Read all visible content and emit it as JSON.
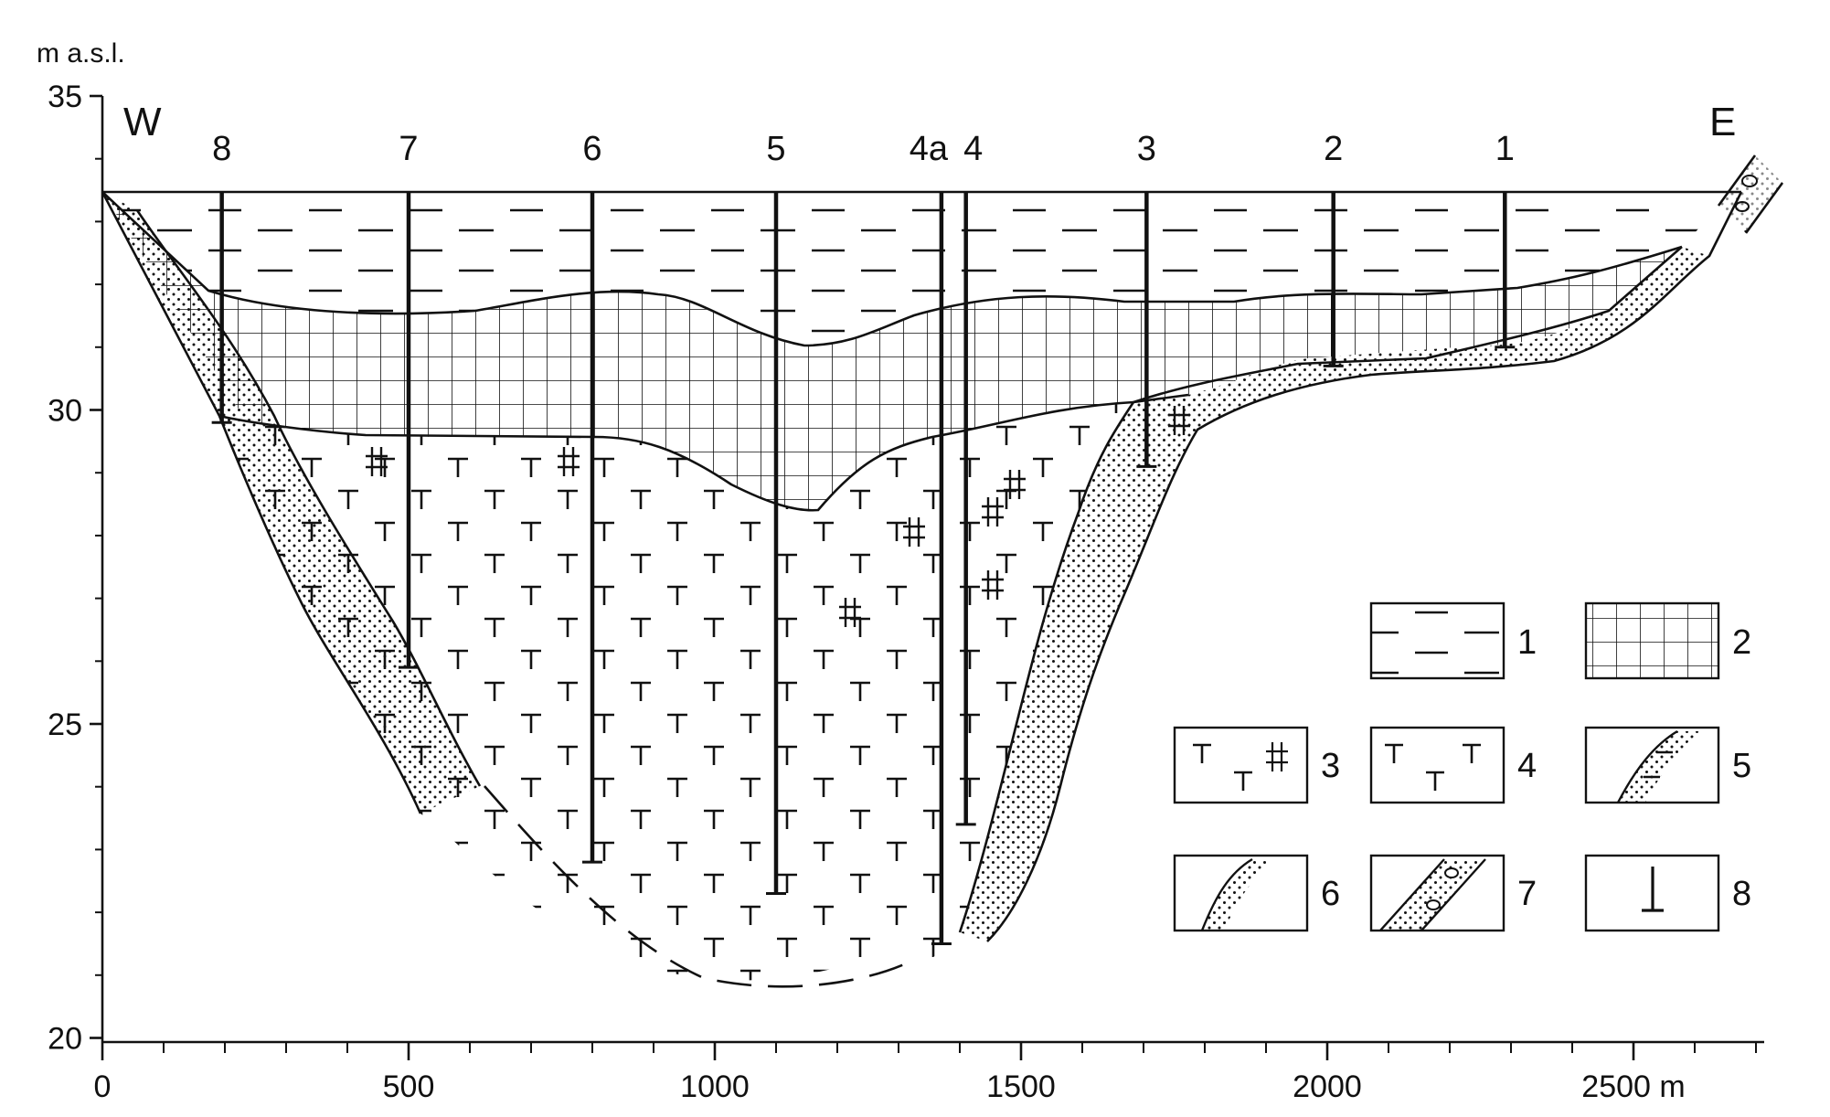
{
  "y_axis": {
    "unit_label": "m a.s.l.",
    "ticks": [
      {
        "value": 35,
        "label": "35"
      },
      {
        "value": 30,
        "label": "30"
      },
      {
        "value": 25,
        "label": "25"
      },
      {
        "value": 20,
        "label": "20"
      }
    ]
  },
  "x_axis": {
    "ticks": [
      {
        "value": 0,
        "label": "0"
      },
      {
        "value": 500,
        "label": "500"
      },
      {
        "value": 1000,
        "label": "1000"
      },
      {
        "value": 1500,
        "label": "1500"
      },
      {
        "value": 2000,
        "label": "2000"
      },
      {
        "value": 2500,
        "label": "2500 m"
      }
    ]
  },
  "directions": {
    "west": "W",
    "east": "E"
  },
  "boreholes": [
    {
      "label": "8",
      "x": 195,
      "bottom": 29.8
    },
    {
      "label": "7",
      "x": 500,
      "bottom": 25.9
    },
    {
      "label": "6",
      "x": 800,
      "bottom": 22.8
    },
    {
      "label": "5",
      "x": 1100,
      "bottom": 22.3
    },
    {
      "label": "4a",
      "x": 1370,
      "bottom": 21.5
    },
    {
      "label": "4",
      "x": 1410,
      "bottom": 23.4
    },
    {
      "label": "3",
      "x": 1705,
      "bottom": 29.1
    },
    {
      "label": "2",
      "x": 2010,
      "bottom": 30.7
    },
    {
      "label": "1",
      "x": 2290,
      "bottom": 31.0
    }
  ],
  "legend": [
    {
      "number": "1",
      "pattern": "dashes"
    },
    {
      "number": "2",
      "pattern": "grid"
    },
    {
      "number": "3",
      "pattern": "T-with-hash"
    },
    {
      "number": "4",
      "pattern": "T"
    },
    {
      "number": "5",
      "pattern": "dotted-with-dashes"
    },
    {
      "number": "6",
      "pattern": "dotted"
    },
    {
      "number": "7",
      "pattern": "gravel"
    },
    {
      "number": "8",
      "pattern": "borehole"
    }
  ]
}
